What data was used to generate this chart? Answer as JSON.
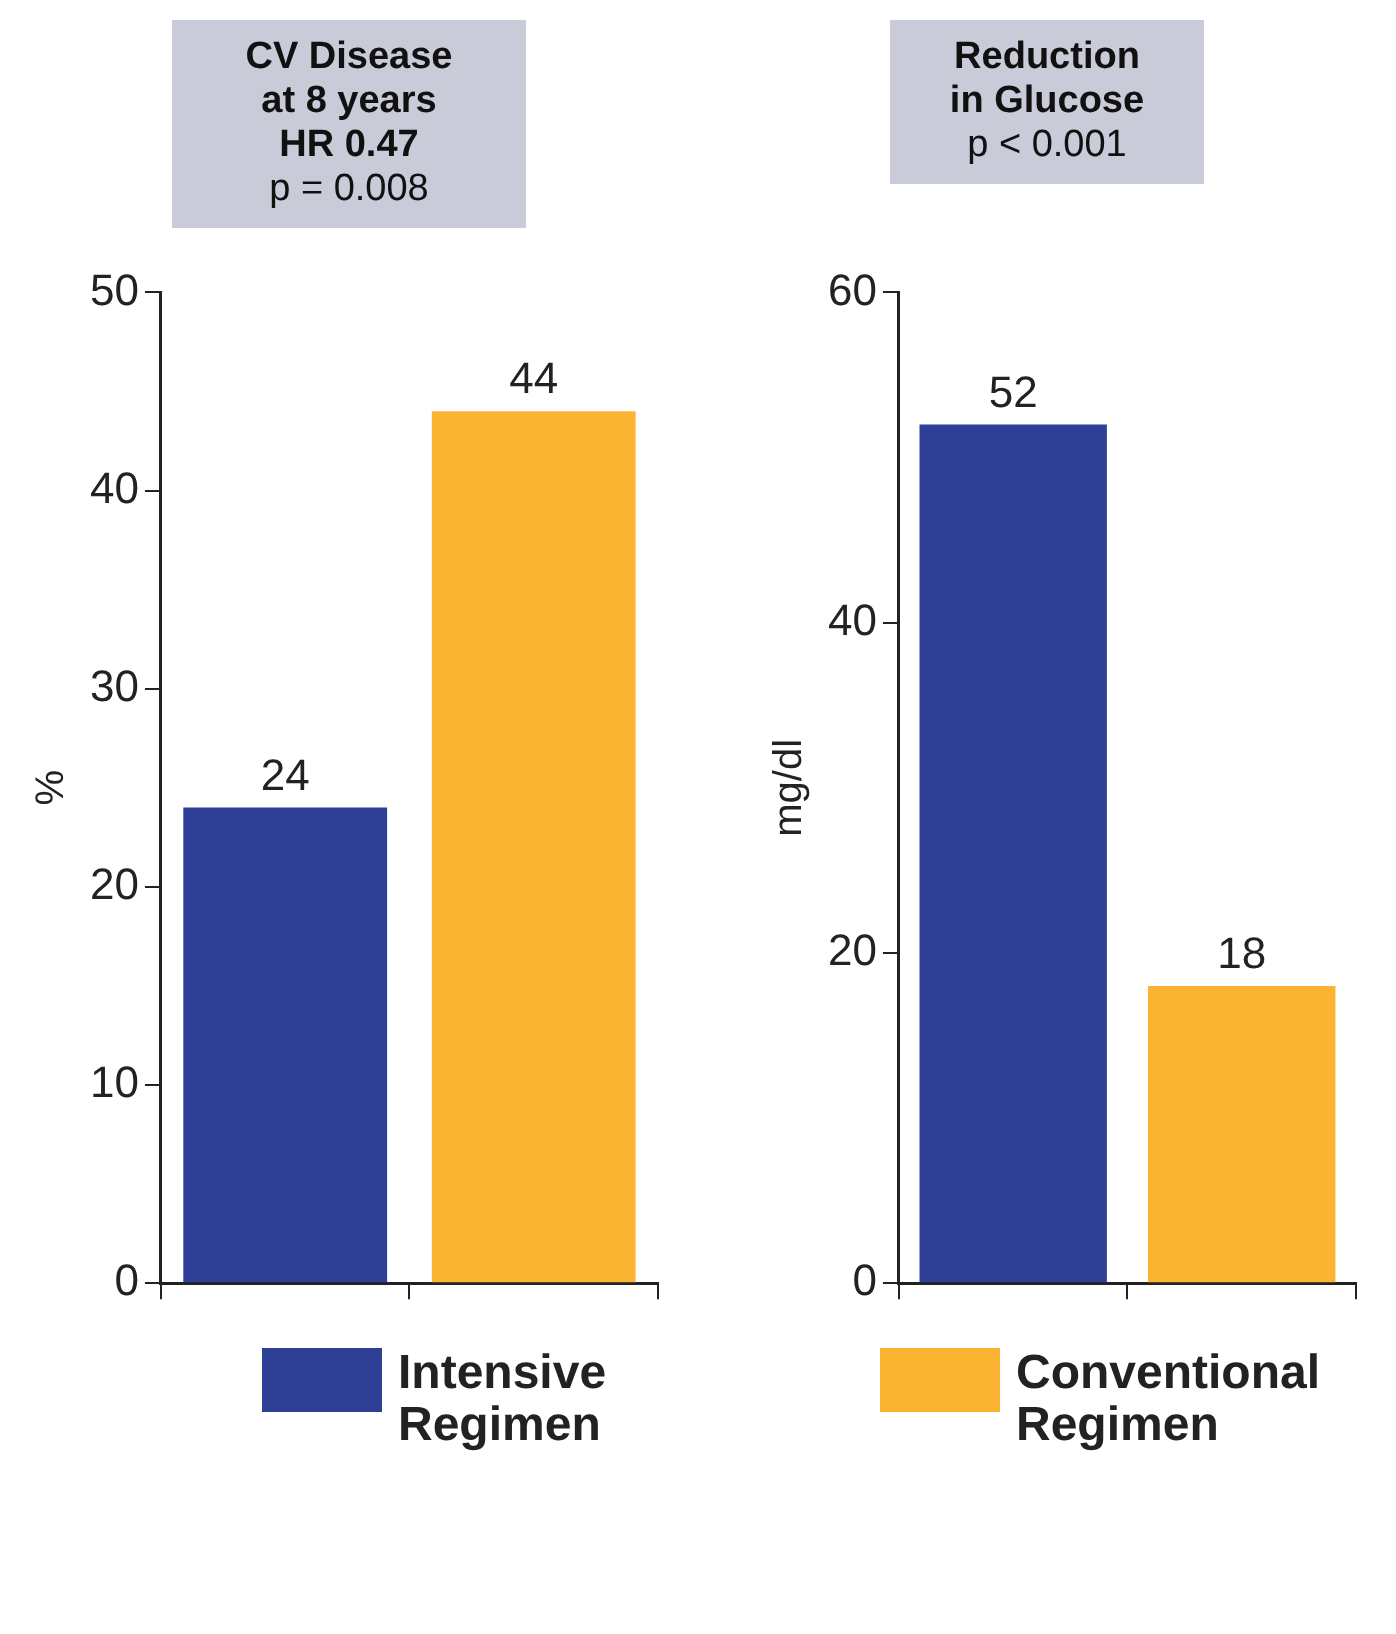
{
  "chart_data": [
    {
      "type": "bar",
      "title": "CV Disease\nat 8 years\nHR 0.47",
      "subtitle": "p = 0.008",
      "ylabel": "%",
      "categories": [
        null,
        null
      ],
      "series": [
        {
          "name": "Intensive Regimen",
          "color": "#2e3f96",
          "values": [
            24,
            null
          ]
        },
        {
          "name": "Conventional Regimen",
          "color": "#fbb432",
          "values": [
            null,
            44
          ]
        }
      ],
      "ylim": [
        0,
        50
      ],
      "yticks": [
        0,
        10,
        20,
        30,
        40,
        50
      ],
      "data_labels": true,
      "legend": "bottom"
    },
    {
      "type": "bar",
      "title": "Reduction\nin Glucose",
      "subtitle": "p < 0.001",
      "ylabel": "mg/dl",
      "categories": [
        null,
        null
      ],
      "series": [
        {
          "color": "#2e3f96",
          "values": [
            52,
            null
          ]
        },
        {
          "color": "#fbb432",
          "values": [
            null,
            18
          ]
        }
      ],
      "ylim": [
        0,
        60
      ],
      "yticks": [
        0,
        20,
        40,
        60
      ],
      "data_labels": true,
      "legend": "bottom"
    }
  ]
}
